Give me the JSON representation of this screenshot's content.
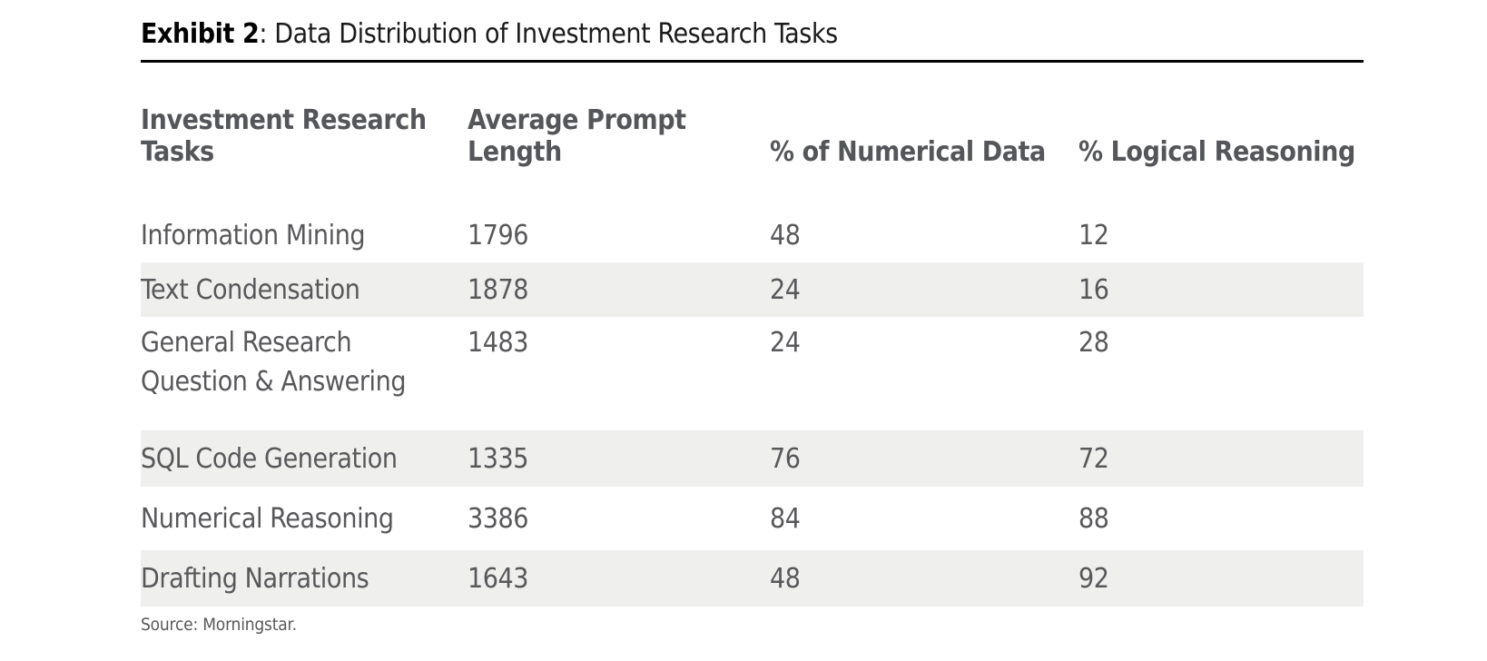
{
  "exhibit": {
    "label": "Exhibit 2",
    "title_rest": ": Data Distribution of Investment Research Tasks"
  },
  "table": {
    "header": {
      "tasks_line1": "Investment Research",
      "tasks_line2": "Tasks",
      "avg_prompt_length": "Average Prompt Length",
      "pct_numerical_data": "% of Numerical Data",
      "pct_logical_reasoning": "% Logical Reasoning"
    },
    "rows": [
      {
        "task": "Information Mining",
        "avg_prompt_length": "1796",
        "pct_numerical_data": "48",
        "pct_logical_reasoning": "12"
      },
      {
        "task": "Text Condensation",
        "avg_prompt_length": "1878",
        "pct_numerical_data": "24",
        "pct_logical_reasoning": "16"
      },
      {
        "task": "General Research Question & Answering",
        "task_lines": [
          "General Research",
          "Question & Answering"
        ],
        "avg_prompt_length": "1483",
        "pct_numerical_data": "24",
        "pct_logical_reasoning": "28"
      },
      {
        "task": "SQL Code Generation",
        "avg_prompt_length": "1335",
        "pct_numerical_data": "76",
        "pct_logical_reasoning": "72"
      },
      {
        "task": "Numerical Reasoning",
        "avg_prompt_length": "3386",
        "pct_numerical_data": "84",
        "pct_logical_reasoning": "88"
      },
      {
        "task": "Drafting Narrations",
        "avg_prompt_length": "1643",
        "pct_numerical_data": "48",
        "pct_logical_reasoning": "92"
      }
    ]
  },
  "source": "Source: Morningstar.",
  "colors": {
    "row_stripe": "#efefed",
    "body_text_gray": "#58585b",
    "header_text_gray": "#55565a",
    "title_black": "#000000",
    "rule_black": "#000000"
  },
  "chart_data": {
    "type": "table",
    "title": "Exhibit 2: Data Distribution of Investment Research Tasks",
    "columns": [
      "Investment Research Tasks",
      "Average Prompt Length",
      "% of Numerical Data",
      "% Logical Reasoning"
    ],
    "categories": [
      "Information Mining",
      "Text Condensation",
      "General Research Question & Answering",
      "SQL Code Generation",
      "Numerical Reasoning",
      "Drafting Narrations"
    ],
    "series": [
      {
        "name": "Average Prompt Length",
        "values": [
          1796,
          1878,
          1483,
          1335,
          3386,
          1643
        ]
      },
      {
        "name": "% of Numerical Data",
        "values": [
          48,
          24,
          24,
          76,
          84,
          48
        ]
      },
      {
        "name": "% Logical Reasoning",
        "values": [
          12,
          16,
          28,
          72,
          88,
          92
        ]
      }
    ]
  }
}
